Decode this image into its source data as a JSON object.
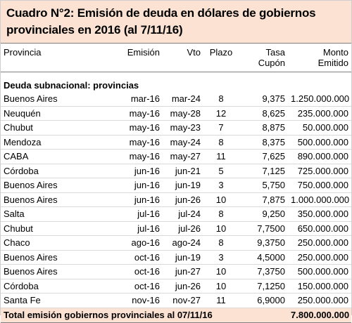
{
  "title": {
    "line1": "Cuadro N°2: Emisión de deuda en dólares de gobiernos",
    "line2": "provinciales en 2016 (al 7/11/16)"
  },
  "headers": {
    "provincia": "Provincia",
    "emision": "Emisión",
    "vto": "Vto",
    "plazo": "Plazo",
    "tasa_1": "Tasa",
    "tasa_2": "Cupón",
    "monto_1": "Monto",
    "monto_2": "Emitido"
  },
  "section_label": "Deuda subnacional: provincias",
  "rows": [
    {
      "provincia": "Buenos Aires",
      "emision": "mar-16",
      "vto": "mar-24",
      "plazo": "8",
      "tasa": "9,375",
      "monto": "1.250.000.000"
    },
    {
      "provincia": "Neuquén",
      "emision": "may-16",
      "vto": "may-28",
      "plazo": "12",
      "tasa": "8,625",
      "monto": "235.000.000"
    },
    {
      "provincia": "Chubut",
      "emision": "may-16",
      "vto": "may-23",
      "plazo": "7",
      "tasa": "8,875",
      "monto": "50.000.000"
    },
    {
      "provincia": "Mendoza",
      "emision": "may-16",
      "vto": "may-24",
      "plazo": "8",
      "tasa": "8,375",
      "monto": "500.000.000"
    },
    {
      "provincia": "CABA",
      "emision": "may-16",
      "vto": "may-27",
      "plazo": "11",
      "tasa": "7,625",
      "monto": "890.000.000"
    },
    {
      "provincia": "Córdoba",
      "emision": "jun-16",
      "vto": "jun-21",
      "plazo": "5",
      "tasa": "7,125",
      "monto": "725.000.000"
    },
    {
      "provincia": "Buenos Aires",
      "emision": "jun-16",
      "vto": "jun-19",
      "plazo": "3",
      "tasa": "5,750",
      "monto": "750.000.000"
    },
    {
      "provincia": "Buenos Aires",
      "emision": "jun-16",
      "vto": "jun-26",
      "plazo": "10",
      "tasa": "7,875",
      "monto": "1.000.000.000"
    },
    {
      "provincia": "Salta",
      "emision": "jul-16",
      "vto": "jul-24",
      "plazo": "8",
      "tasa": "9,250",
      "monto": "350.000.000"
    },
    {
      "provincia": "Chubut",
      "emision": "jul-16",
      "vto": "jul-26",
      "plazo": "10",
      "tasa": "7,7500",
      "monto": "650.000.000"
    },
    {
      "provincia": "Chaco",
      "emision": "ago-16",
      "vto": "ago-24",
      "plazo": "8",
      "tasa": "9,3750",
      "monto": "250.000.000"
    },
    {
      "provincia": "Buenos Aires",
      "emision": "oct-16",
      "vto": "jun-19",
      "plazo": "3",
      "tasa": "4,5000",
      "monto": "250.000.000"
    },
    {
      "provincia": "Buenos Aires",
      "emision": "oct-16",
      "vto": "jun-27",
      "plazo": "10",
      "tasa": "7,3750",
      "monto": "500.000.000"
    },
    {
      "provincia": "Córdoba",
      "emision": "oct-16",
      "vto": "jun-26",
      "plazo": "10",
      "tasa": "7,1250",
      "monto": "150.000.000"
    },
    {
      "provincia": "Santa Fe",
      "emision": "nov-16",
      "vto": "nov-27",
      "plazo": "11",
      "tasa": "6,9000",
      "monto": "250.000.000"
    }
  ],
  "total": {
    "label": "Total emisión gobiernos provinciales al 07/11/16",
    "monto": "7.800.000.000"
  }
}
